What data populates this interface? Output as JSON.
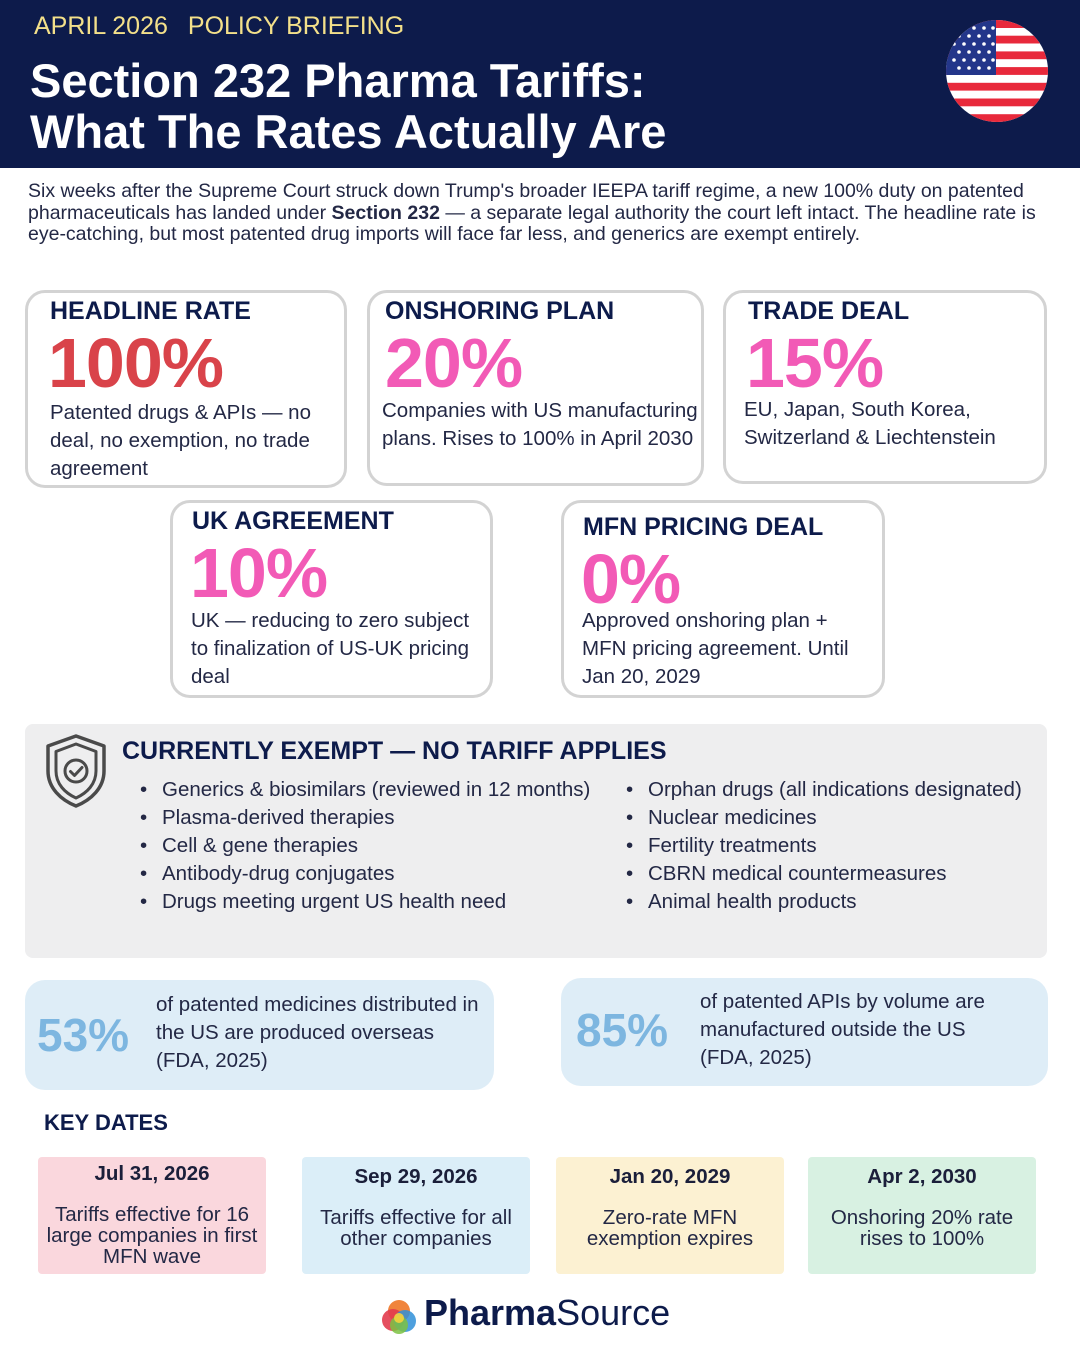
{
  "header": {
    "date": "APRIL 2026",
    "section": "POLICY BRIEFING",
    "title_line1": "Section 232 Pharma Tariffs:",
    "title_line2": "What The Rates Actually Are"
  },
  "intro": {
    "before": "Six weeks after the Supreme Court struck down Trump's broader IEEPA tariff regime, a new 100% duty on patented pharmaceuticals has landed under ",
    "bold": "Section 232",
    "after": " — a separate legal authority the court left intact. The headline rate is eye-catching, but most patented drug imports will face far less, and generics are exempt entirely."
  },
  "rates": [
    {
      "label": "HEADLINE RATE",
      "value": "100%",
      "desc": "Patented drugs & APIs — no deal, no exemption, no trade agreement",
      "color": "#d9434a"
    },
    {
      "label": "ONSHORING PLAN",
      "value": "20%",
      "desc": "Companies with US manufacturing plans. Rises to 100% in April 2030",
      "color": "#f25ab6"
    },
    {
      "label": "TRADE DEAL",
      "value": "15%",
      "desc": "EU, Japan, South Korea, Switzerland & Liechtenstein",
      "color": "#f25ab6"
    },
    {
      "label": "UK AGREEMENT",
      "value": "10%",
      "desc": "UK — reducing to zero subject to finalization of US-UK pricing deal",
      "color": "#f25ab6"
    },
    {
      "label": "MFN PRICING DEAL",
      "value": "0%",
      "desc": "Approved onshoring plan + MFN pricing agreement. Until Jan 20, 2029",
      "color": "#f25ab6"
    }
  ],
  "exempt": {
    "title": "CURRENTLY EXEMPT — NO TARIFF APPLIES",
    "left": [
      " Generics & biosimilars (reviewed in 12 months)",
      "Plasma-derived therapies",
      "Cell & gene therapies",
      "Antibody-drug conjugates",
      "Drugs meeting urgent US health need"
    ],
    "right": [
      "Orphan drugs (all indications designated)",
      "Nuclear medicines",
      "Fertility treatments",
      "CBRN medical countermeasures",
      "Animal health products"
    ]
  },
  "stats": [
    {
      "value": "53%",
      "text": "of patented medicines distributed in the US are produced overseas (FDA, 2025)"
    },
    {
      "value": "85%",
      "text": "of patented APIs by volume are manufactured outside the US (FDA, 2025)"
    }
  ],
  "key_dates": {
    "title": "KEY DATES",
    "items": [
      {
        "date": "Jul 31, 2026",
        "desc": "Tariffs effective for 16 large companies in first MFN wave",
        "bg": "#fad7dd"
      },
      {
        "date": "Sep 29, 2026",
        "desc": "Tariffs effective for all other companies",
        "bg": "#dbeef8"
      },
      {
        "date": "Jan 20, 2029",
        "desc": "Zero-rate MFN exemption expires",
        "bg": "#fcf1d2"
      },
      {
        "date": "Apr 2, 2030",
        "desc": "Onshoring 20% rate rises to 100%",
        "bg": "#d8f1e2"
      }
    ]
  },
  "brand": {
    "name_bold": "Pharma",
    "name_regular": "Source"
  },
  "icons": {
    "flag": "us-flag-icon",
    "shield": "shield-check-icon",
    "logo": "pharmasource-logo-icon"
  },
  "colors": {
    "navy": "#0d1b4b",
    "gold": "#f3e08a",
    "red": "#d9434a",
    "pink": "#f25ab6",
    "stat_blue": "#7db6e0"
  }
}
